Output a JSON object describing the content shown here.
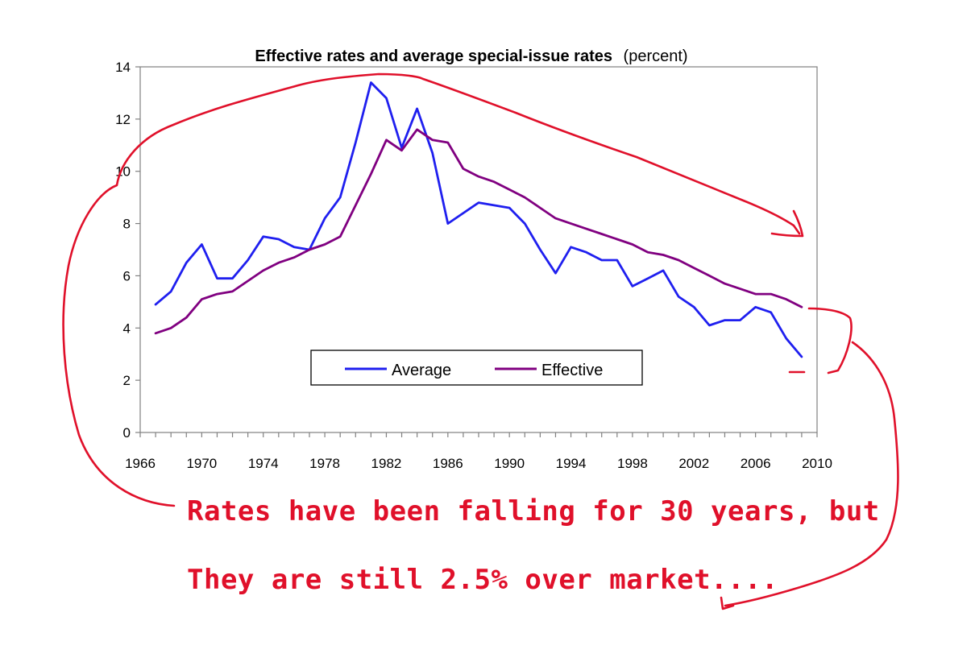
{
  "chart_data": {
    "type": "line",
    "title": "Effective rates and average special-issue rates",
    "title_suffix": "(percent)",
    "xlabel": "",
    "ylabel": "",
    "xlim": [
      1966,
      2010
    ],
    "ylim": [
      0,
      14
    ],
    "x_ticks": [
      1966,
      1970,
      1974,
      1978,
      1982,
      1986,
      1990,
      1994,
      1998,
      2002,
      2006,
      2010
    ],
    "y_ticks": [
      0,
      2,
      4,
      6,
      8,
      10,
      12,
      14
    ],
    "grid": false,
    "legend_position": "bottom-center",
    "series": [
      {
        "name": "Average",
        "color": "#1f1fef",
        "x": [
          1967,
          1968,
          1969,
          1970,
          1971,
          1972,
          1973,
          1974,
          1975,
          1976,
          1977,
          1978,
          1979,
          1980,
          1981,
          1982,
          1983,
          1984,
          1985,
          1986,
          1987,
          1988,
          1989,
          1990,
          1991,
          1992,
          1993,
          1994,
          1995,
          1996,
          1997,
          1998,
          1999,
          2000,
          2001,
          2002,
          2003,
          2004,
          2005,
          2006,
          2007,
          2008,
          2009
        ],
        "values": [
          4.9,
          5.4,
          6.5,
          7.2,
          5.9,
          5.9,
          6.6,
          7.5,
          7.4,
          7.1,
          7.0,
          8.2,
          9.0,
          11.1,
          13.4,
          12.8,
          10.9,
          12.4,
          10.7,
          8.0,
          8.4,
          8.8,
          8.7,
          8.6,
          8.0,
          7.0,
          6.1,
          7.1,
          6.9,
          6.6,
          6.6,
          5.6,
          5.9,
          6.2,
          5.2,
          4.8,
          4.1,
          4.3,
          4.3,
          4.8,
          4.6,
          3.6,
          2.9
        ]
      },
      {
        "name": "Effective",
        "color": "#800080",
        "x": [
          1967,
          1968,
          1969,
          1970,
          1971,
          1972,
          1973,
          1974,
          1975,
          1976,
          1977,
          1978,
          1979,
          1980,
          1981,
          1982,
          1983,
          1984,
          1985,
          1986,
          1987,
          1988,
          1989,
          1990,
          1991,
          1992,
          1993,
          1994,
          1995,
          1996,
          1997,
          1998,
          1999,
          2000,
          2001,
          2002,
          2003,
          2004,
          2005,
          2006,
          2007,
          2008,
          2009
        ],
        "values": [
          3.8,
          4.0,
          4.4,
          5.1,
          5.3,
          5.4,
          5.8,
          6.2,
          6.5,
          6.7,
          7.0,
          7.2,
          7.5,
          8.7,
          9.9,
          11.2,
          10.8,
          11.6,
          11.2,
          11.1,
          10.1,
          9.8,
          9.6,
          9.3,
          9.0,
          8.6,
          8.2,
          8.0,
          7.8,
          7.6,
          7.4,
          7.2,
          6.9,
          6.8,
          6.6,
          6.3,
          6.0,
          5.7,
          5.5,
          5.3,
          5.3,
          5.1,
          4.8
        ]
      }
    ]
  },
  "annotations": {
    "line1": "Rates have been falling for 30 years, but",
    "line2": "They are still 2.5% over market...."
  },
  "colors": {
    "annotation": "#e0102a",
    "axis": "#808080",
    "plot_border": "#808080"
  }
}
